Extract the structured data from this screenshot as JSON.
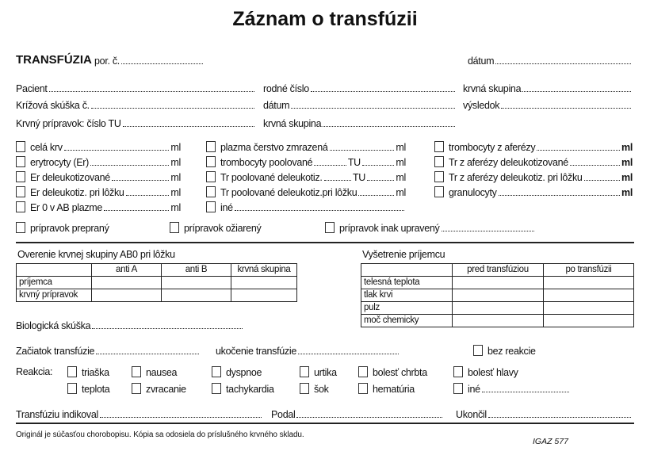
{
  "title": "Záznam o transfúzii",
  "header": {
    "transfuzia": "TRANSFÚZIA",
    "por_c": "por. č.",
    "datum": "dátum"
  },
  "patient": {
    "pacient": "Pacient",
    "rodne_cislo": "rodné číslo",
    "krvna_skupina": "krvná skupina",
    "krizova": "Krížová skúška č.",
    "datum": "dátum",
    "vysledok": "výsledok",
    "pripravok": "Krvný prípravok:  číslo TU",
    "pripravok_skupina": "krvná skupina"
  },
  "products": {
    "col1": [
      "celá krv",
      "erytrocyty (Er)",
      "Er deleukotizované",
      "Er deleukotiz. pri lôžku",
      "Er 0 v AB plazme"
    ],
    "col2": [
      "plazma čerstvo zmrazená",
      "trombocyty poolované",
      "Tr poolované deleukotiz.",
      "Tr poolované deleukotiz.pri lôžku",
      "iné"
    ],
    "col3": [
      "trombocyty z aferézy",
      "Tr z aferézy deleukotizované",
      "Tr z aferézy deleukotiz. pri lôžku",
      "granulocyty"
    ],
    "unit_ml": "ml",
    "unit_tu": "TU",
    "treatment": [
      "prípravok prepraný",
      "prípravok ožiarený",
      "prípravok inak upravený"
    ]
  },
  "ab0": {
    "title": "Overenie krvnej skupiny AB0 pri lôžku",
    "headers": [
      "",
      "anti A",
      "anti B",
      "krvná skupina"
    ],
    "rows": [
      "príjemca",
      "krvný prípravok"
    ]
  },
  "recipient": {
    "title": "Vyšetrenie príjemcu",
    "headers": [
      "",
      "pred transfúziou",
      "po transfúzii"
    ],
    "rows": [
      "telesná teplota",
      "tlak krvi",
      "pulz",
      "moč chemicky"
    ]
  },
  "bio": "Biologická skúška",
  "start": "Začiatok transfúzie",
  "end": "ukočenie transfúzie",
  "no_reaction": "bez reakcie",
  "reaction": {
    "label": "Reakcia:",
    "row1": [
      "triaška",
      "nausea",
      "dyspnoe",
      "urtika",
      "bolesť chrbta",
      "bolesť hlavy"
    ],
    "row2": [
      "teplota",
      "zvracanie",
      "tachykardia",
      "šok",
      "hematúria",
      "iné"
    ]
  },
  "signatures": {
    "indicated": "Transfúziu indikoval",
    "given": "Podal",
    "finished": "Ukončil"
  },
  "footer": {
    "note": "Originál je súčasťou chorobopisu.  Kópia sa odosiela do príslušného krvného skladu.",
    "code": "IGAZ  577"
  }
}
